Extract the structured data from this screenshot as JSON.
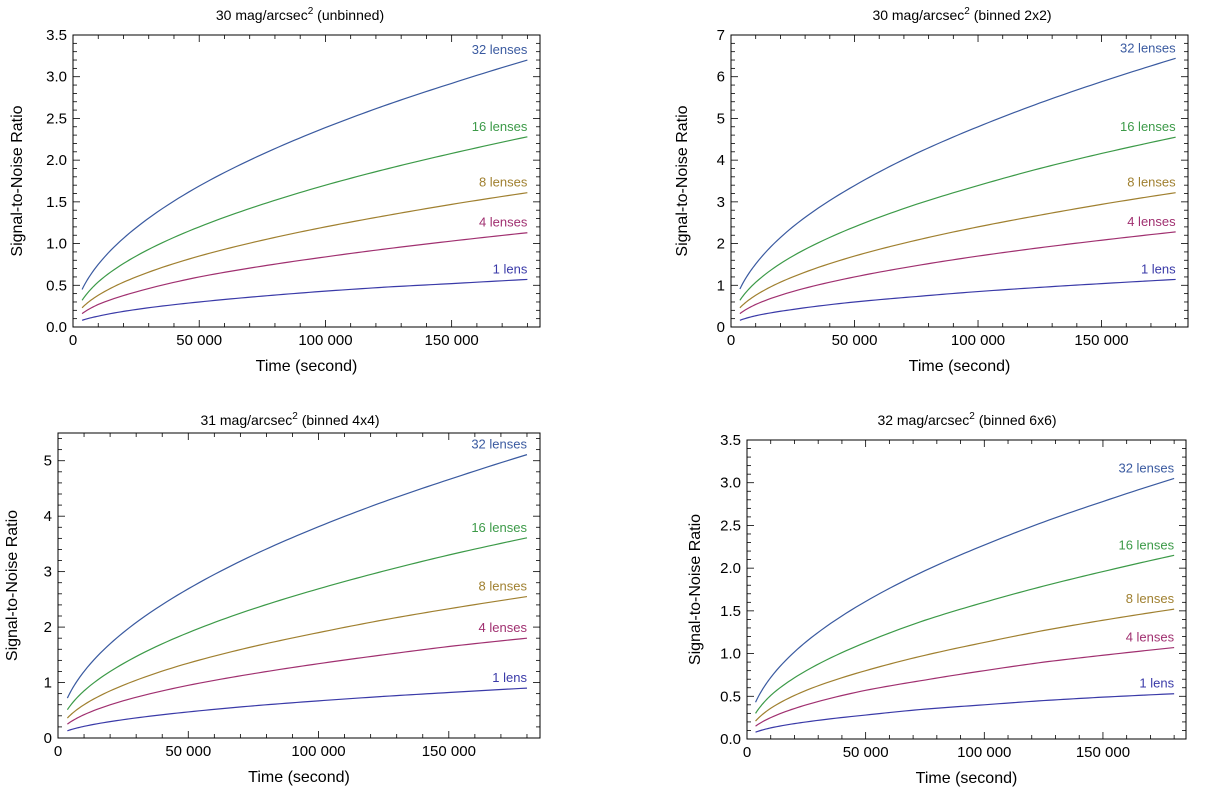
{
  "chart_data": [
    {
      "type": "line",
      "title": {
        "main": "30 mag/arcsec",
        "sup": "2",
        "suffix": " (unbinned)"
      },
      "xlabel": "Time (second)",
      "ylabel": "Signal-to-Noise Ratio",
      "xlim": [
        0,
        185000
      ],
      "ylim": [
        0,
        3.5
      ],
      "xticks": [
        0,
        50000,
        100000,
        150000
      ],
      "xtick_labels": [
        "0",
        "50 000",
        "100 000",
        "150 000"
      ],
      "yticks": [
        0,
        0.5,
        1.0,
        1.5,
        2.0,
        2.5,
        3.0,
        3.5
      ],
      "ytick_labels": [
        "0.0",
        "0.5",
        "1.0",
        "1.5",
        "2.0",
        "2.5",
        "3.0",
        "3.5"
      ],
      "grid": false,
      "series": [
        {
          "name": "32 lenses",
          "color": "#3a5aa0",
          "x": [
            3600,
            10000,
            25000,
            50000,
            75000,
            100000,
            125000,
            150000,
            180000
          ],
          "y": [
            0.45,
            0.75,
            1.19,
            1.69,
            2.07,
            2.39,
            2.67,
            2.92,
            3.2
          ]
        },
        {
          "name": "16 lenses",
          "color": "#3c9a48",
          "x": [
            3600,
            10000,
            25000,
            50000,
            75000,
            100000,
            125000,
            150000,
            180000
          ],
          "y": [
            0.32,
            0.54,
            0.85,
            1.2,
            1.47,
            1.7,
            1.9,
            2.08,
            2.28
          ]
        },
        {
          "name": "8 lenses",
          "color": "#a08030",
          "x": [
            3600,
            10000,
            25000,
            50000,
            75000,
            100000,
            125000,
            150000,
            180000
          ],
          "y": [
            0.23,
            0.38,
            0.6,
            0.85,
            1.04,
            1.2,
            1.34,
            1.47,
            1.61
          ]
        },
        {
          "name": "4 lenses",
          "color": "#a03070",
          "x": [
            3600,
            10000,
            25000,
            50000,
            75000,
            100000,
            125000,
            150000,
            180000
          ],
          "y": [
            0.16,
            0.27,
            0.42,
            0.6,
            0.73,
            0.84,
            0.94,
            1.03,
            1.13
          ]
        },
        {
          "name": "1 lens",
          "color": "#3a3aa8",
          "x": [
            3600,
            10000,
            25000,
            50000,
            75000,
            100000,
            125000,
            150000,
            180000
          ],
          "y": [
            0.08,
            0.13,
            0.21,
            0.3,
            0.37,
            0.43,
            0.48,
            0.52,
            0.57
          ]
        }
      ]
    },
    {
      "type": "line",
      "title": {
        "main": "30 mag/arcsec",
        "sup": "2",
        "suffix": " (binned 2x2)"
      },
      "xlabel": "Time (second)",
      "ylabel": "Signal-to-Noise Ratio",
      "xlim": [
        0,
        185000
      ],
      "ylim": [
        0,
        7
      ],
      "xticks": [
        0,
        50000,
        100000,
        150000
      ],
      "xtick_labels": [
        "0",
        "50 000",
        "100 000",
        "150 000"
      ],
      "yticks": [
        0,
        1,
        2,
        3,
        4,
        5,
        6,
        7
      ],
      "ytick_labels": [
        "0",
        "1",
        "2",
        "3",
        "4",
        "5",
        "6",
        "7"
      ],
      "grid": false,
      "series": [
        {
          "name": "32 lenses",
          "color": "#3a5aa0",
          "x": [
            3600,
            10000,
            25000,
            50000,
            75000,
            100000,
            125000,
            150000,
            180000
          ],
          "y": [
            0.91,
            1.51,
            2.4,
            3.39,
            4.16,
            4.8,
            5.37,
            5.88,
            6.44
          ]
        },
        {
          "name": "16 lenses",
          "color": "#3c9a48",
          "x": [
            3600,
            10000,
            25000,
            50000,
            75000,
            100000,
            125000,
            150000,
            180000
          ],
          "y": [
            0.64,
            1.07,
            1.7,
            2.4,
            2.94,
            3.39,
            3.8,
            4.16,
            4.55
          ]
        },
        {
          "name": "8 lenses",
          "color": "#a08030",
          "x": [
            3600,
            10000,
            25000,
            50000,
            75000,
            100000,
            125000,
            150000,
            180000
          ],
          "y": [
            0.46,
            0.76,
            1.2,
            1.7,
            2.08,
            2.4,
            2.68,
            2.94,
            3.22
          ]
        },
        {
          "name": "4 lenses",
          "color": "#a03070",
          "x": [
            3600,
            10000,
            25000,
            50000,
            75000,
            100000,
            125000,
            150000,
            180000
          ],
          "y": [
            0.32,
            0.54,
            0.85,
            1.2,
            1.47,
            1.7,
            1.9,
            2.08,
            2.28
          ]
        },
        {
          "name": "1 lens",
          "color": "#3a3aa8",
          "x": [
            3600,
            10000,
            25000,
            50000,
            75000,
            100000,
            125000,
            150000,
            180000
          ],
          "y": [
            0.16,
            0.27,
            0.42,
            0.6,
            0.73,
            0.85,
            0.95,
            1.04,
            1.14
          ]
        }
      ]
    },
    {
      "type": "line",
      "title": {
        "main": "31 mag/arcsec",
        "sup": "2",
        "suffix": " (binned 4x4)"
      },
      "xlabel": "Time (second)",
      "ylabel": "Signal-to-Noise Ratio",
      "xlim": [
        0,
        185000
      ],
      "ylim": [
        0,
        5.5
      ],
      "xticks": [
        0,
        50000,
        100000,
        150000
      ],
      "xtick_labels": [
        "0",
        "50 000",
        "100 000",
        "150 000"
      ],
      "yticks": [
        0,
        1,
        2,
        3,
        4,
        5
      ],
      "ytick_labels": [
        "0",
        "1",
        "2",
        "3",
        "4",
        "5"
      ],
      "grid": false,
      "series": [
        {
          "name": "32 lenses",
          "color": "#3a5aa0",
          "x": [
            3600,
            10000,
            25000,
            50000,
            75000,
            100000,
            125000,
            150000,
            180000
          ],
          "y": [
            0.72,
            1.2,
            1.9,
            2.69,
            3.3,
            3.81,
            4.26,
            4.66,
            5.11
          ]
        },
        {
          "name": "16 lenses",
          "color": "#3c9a48",
          "x": [
            3600,
            10000,
            25000,
            50000,
            75000,
            100000,
            125000,
            150000,
            180000
          ],
          "y": [
            0.51,
            0.85,
            1.34,
            1.9,
            2.33,
            2.69,
            3.01,
            3.3,
            3.61
          ]
        },
        {
          "name": "8 lenses",
          "color": "#a08030",
          "x": [
            3600,
            10000,
            25000,
            50000,
            75000,
            100000,
            125000,
            150000,
            180000
          ],
          "y": [
            0.36,
            0.6,
            0.95,
            1.35,
            1.65,
            1.9,
            2.13,
            2.33,
            2.55
          ]
        },
        {
          "name": "4 lenses",
          "color": "#a03070",
          "x": [
            3600,
            10000,
            25000,
            50000,
            75000,
            100000,
            125000,
            150000,
            180000
          ],
          "y": [
            0.25,
            0.42,
            0.67,
            0.95,
            1.16,
            1.34,
            1.5,
            1.65,
            1.8
          ]
        },
        {
          "name": "1 lens",
          "color": "#3a3aa8",
          "x": [
            3600,
            10000,
            25000,
            50000,
            75000,
            100000,
            125000,
            150000,
            180000
          ],
          "y": [
            0.13,
            0.21,
            0.33,
            0.47,
            0.58,
            0.67,
            0.75,
            0.82,
            0.9
          ]
        }
      ]
    },
    {
      "type": "line",
      "title": {
        "main": "32 mag/arcsec",
        "sup": "2",
        "suffix": " (binned 6x6)"
      },
      "xlabel": "Time (second)",
      "ylabel": "Signal-to-Noise Ratio",
      "xlim": [
        0,
        185000
      ],
      "ylim": [
        0,
        3.5
      ],
      "xticks": [
        0,
        50000,
        100000,
        150000
      ],
      "xtick_labels": [
        "0",
        "50 000",
        "100 000",
        "150 000"
      ],
      "yticks": [
        0,
        0.5,
        1.0,
        1.5,
        2.0,
        2.5,
        3.0,
        3.5
      ],
      "ytick_labels": [
        "0.0",
        "0.5",
        "1.0",
        "1.5",
        "2.0",
        "2.5",
        "3.0",
        "3.5"
      ],
      "grid": false,
      "series": [
        {
          "name": "32 lenses",
          "color": "#3a5aa0",
          "x": [
            3600,
            10000,
            25000,
            50000,
            75000,
            100000,
            125000,
            150000,
            180000
          ],
          "y": [
            0.43,
            0.72,
            1.14,
            1.61,
            1.97,
            2.27,
            2.54,
            2.78,
            3.05
          ]
        },
        {
          "name": "16 lenses",
          "color": "#3c9a48",
          "x": [
            3600,
            10000,
            25000,
            50000,
            75000,
            100000,
            125000,
            150000,
            180000
          ],
          "y": [
            0.3,
            0.51,
            0.8,
            1.13,
            1.39,
            1.6,
            1.79,
            1.96,
            2.15
          ]
        },
        {
          "name": "8 lenses",
          "color": "#a08030",
          "x": [
            3600,
            10000,
            25000,
            50000,
            75000,
            100000,
            125000,
            150000,
            180000
          ],
          "y": [
            0.21,
            0.36,
            0.57,
            0.8,
            0.98,
            1.13,
            1.27,
            1.39,
            1.52
          ]
        },
        {
          "name": "4 lenses",
          "color": "#a03070",
          "x": [
            3600,
            10000,
            25000,
            50000,
            75000,
            100000,
            125000,
            150000,
            180000
          ],
          "y": [
            0.15,
            0.25,
            0.4,
            0.57,
            0.69,
            0.8,
            0.9,
            0.98,
            1.07
          ]
        },
        {
          "name": "1 lens",
          "color": "#3a3aa8",
          "x": [
            3600,
            10000,
            25000,
            50000,
            75000,
            100000,
            125000,
            150000,
            180000
          ],
          "y": [
            0.08,
            0.13,
            0.2,
            0.28,
            0.35,
            0.4,
            0.45,
            0.49,
            0.53
          ]
        }
      ]
    }
  ]
}
